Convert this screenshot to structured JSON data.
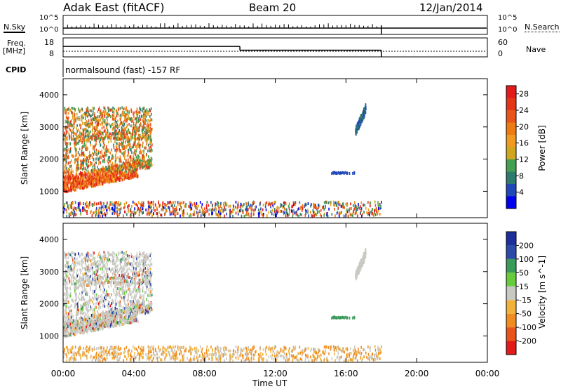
{
  "header": {
    "title": "Adak East (fitACF)",
    "beam": "Beam 20",
    "date": "12/Jan/2014"
  },
  "panels": {
    "nsky_label": "N.Sky",
    "nsearch_label": "N.Search",
    "freq_label": "Freq.",
    "freq_unit": "[MHz]",
    "nave_label": "Nave",
    "cpid_label": "CPID",
    "cpid_text": "normalsound (fast) -157 RF",
    "noise_ticks": [
      "10^5",
      "10^0"
    ],
    "freq_ticks_left": [
      "18",
      "8"
    ],
    "nave_ticks_right": [
      "60",
      "0"
    ]
  },
  "colors": {
    "power": [
      "#0000ee",
      "#2048b8",
      "#2f7a6e",
      "#43a050",
      "#cfa61e",
      "#f09b1f",
      "#ee7a12",
      "#e8541a",
      "#e43516",
      "#e31a1a"
    ],
    "velocity": [
      "#e31a1a",
      "#e8541a",
      "#f08c1e",
      "#f2b23a",
      "#c9c9c4",
      "#66cc3a",
      "#3a9a5a",
      "#2c4aa8",
      "#1c2f9c"
    ]
  },
  "chart_data": {
    "type": "heatmap",
    "x_ticks": [
      "00:00",
      "04:00",
      "08:00",
      "12:00",
      "16:00",
      "20:00",
      "00:00"
    ],
    "xlabel": "Time UT",
    "xlim": [
      0,
      24
    ],
    "ylabel": "Slant Range [km]",
    "y_ticks": [
      1000,
      2000,
      3000,
      4000
    ],
    "ylim": [
      180,
      4500
    ],
    "data_end_hour": 18,
    "power": {
      "colorbar_label": "Power [dB]",
      "colorbar_ticks": [
        4,
        8,
        12,
        16,
        20,
        24,
        28
      ],
      "clim": [
        0,
        30
      ]
    },
    "velocity": {
      "colorbar_label": "Velocity [m s^-1]",
      "colorbar_ticks": [
        200,
        100,
        50,
        15,
        -15,
        -50,
        -100,
        -200
      ]
    },
    "frequency_mhz": [
      {
        "from_hour": 0,
        "to_hour": 10,
        "value": 13.5
      },
      {
        "from_hour": 10,
        "to_hour": 18,
        "value": 11.5
      }
    ],
    "nave": 0
  }
}
